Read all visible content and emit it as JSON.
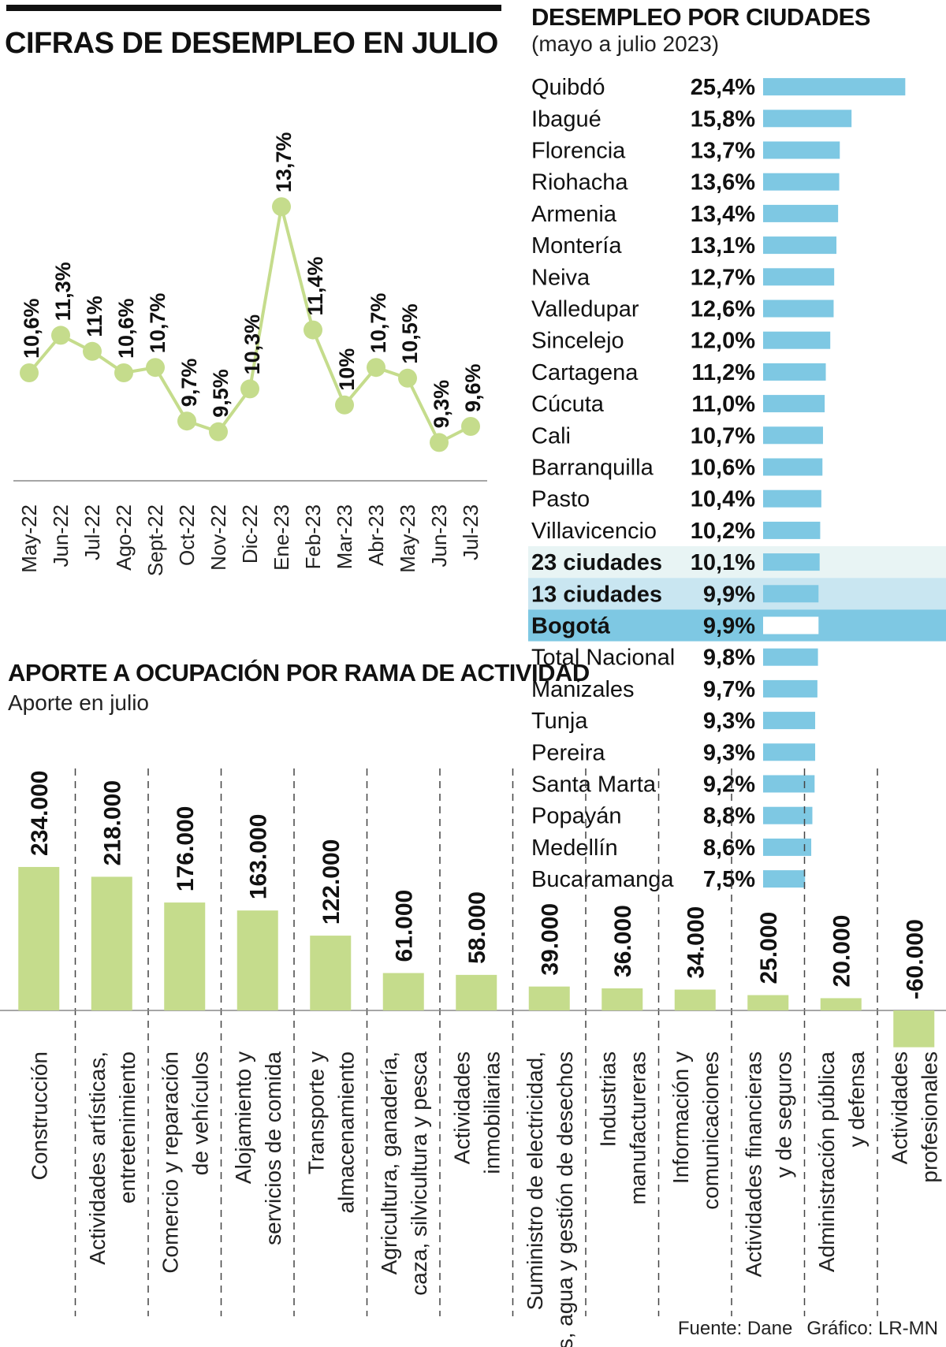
{
  "titles": {
    "main": "CIFRAS DE DESEMPLEO EN JULIO",
    "cities": "DESEMPLEO POR CIUDADES",
    "cities_sub": "(mayo a julio 2023)",
    "branch": "APORTE A OCUPACIÓN POR RAMA DE ACTIVIDAD",
    "branch_sub": "Aporte en julio"
  },
  "footer": {
    "source": "Fuente: Dane",
    "credit": "Gráfico: LR-MN"
  },
  "colors": {
    "line": "#c5dc8c",
    "bar": "#c5dc8c",
    "city_bar": "#7ec8e3",
    "hl_23": "#e8f4f4",
    "hl_13": "#c9e6f1",
    "hl_bogota": "#7ec8e3"
  },
  "chart_data": [
    {
      "type": "line",
      "title": "CIFRAS DE DESEMPLEO EN JULIO",
      "categories": [
        "May-22",
        "Jun-22",
        "Jul-22",
        "Ago-22",
        "Sept-22",
        "Oct-22",
        "Nov-22",
        "Dic-22",
        "Ene-23",
        "Feb-23",
        "Mar-23",
        "Abr-23",
        "May-23",
        "Jun-23",
        "Jul-23"
      ],
      "values": [
        10.6,
        11.3,
        11,
        10.6,
        10.7,
        9.7,
        9.5,
        10.3,
        13.7,
        11.4,
        10,
        10.7,
        10.5,
        9.3,
        9.6
      ],
      "labels": [
        "10,6%",
        "11,3%",
        "11%",
        "10,6%",
        "10,7%",
        "9,7%",
        "9,5%",
        "10,3%",
        "13,7%",
        "11,4%",
        "10%",
        "10,7%",
        "10,5%",
        "9,3%",
        "9,6%"
      ]
    },
    {
      "type": "bar",
      "orientation": "horizontal",
      "title": "DESEMPLEO POR CIUDADES",
      "subtitle": "(mayo a julio 2023)",
      "categories": [
        "Quibdó",
        "Ibagué",
        "Florencia",
        "Riohacha",
        "Armenia",
        "Montería",
        "Neiva",
        "Valledupar",
        "Sincelejo",
        "Cartagena",
        "Cúcuta",
        "Cali",
        "Barranquilla",
        "Pasto",
        "Villavicencio",
        "23 ciudades",
        "13 ciudades",
        "Bogotá",
        "Total Nacional",
        "Manizales",
        "Tunja",
        "Pereira",
        "Santa Marta",
        "Popayán",
        "Medellín",
        "Bucaramanga"
      ],
      "values": [
        25.4,
        15.8,
        13.7,
        13.6,
        13.4,
        13.1,
        12.7,
        12.6,
        12.0,
        11.2,
        11.0,
        10.7,
        10.6,
        10.4,
        10.2,
        10.1,
        9.9,
        9.9,
        9.8,
        9.7,
        9.3,
        9.3,
        9.2,
        8.8,
        8.6,
        7.5
      ],
      "labels": [
        "25,4%",
        "15,8%",
        "13,7%",
        "13,6%",
        "13,4%",
        "13,1%",
        "12,7%",
        "12,6%",
        "12,0%",
        "11,2%",
        "11,0%",
        "10,7%",
        "10,6%",
        "10,4%",
        "10,2%",
        "10,1%",
        "9,9%",
        "9,9%",
        "9,8%",
        "9,7%",
        "9,3%",
        "9,3%",
        "9,2%",
        "8,8%",
        "8,6%",
        "7,5%"
      ],
      "highlight": [
        "none",
        "none",
        "none",
        "none",
        "none",
        "none",
        "none",
        "none",
        "none",
        "none",
        "none",
        "none",
        "none",
        "none",
        "none",
        "hl_23",
        "hl_13",
        "hl_bogota",
        "none",
        "none",
        "none",
        "none",
        "none",
        "none",
        "none",
        "none"
      ]
    },
    {
      "type": "bar",
      "title": "APORTE A OCUPACIÓN POR RAMA DE ACTIVIDAD",
      "subtitle": "Aporte en julio",
      "categories": [
        [
          "Construcción"
        ],
        [
          "Actividades artísticas,",
          "entretenimiento"
        ],
        [
          "Comercio y reparación",
          "de vehículos"
        ],
        [
          "Alojamiento y",
          "servicios de comida"
        ],
        [
          "Transporte y",
          "almacenamiento"
        ],
        [
          "Agricultura, ganadería,",
          "caza, silvicultura y pesca"
        ],
        [
          "Actividades",
          "inmobiliarias"
        ],
        [
          "Suministro de electricidad,",
          "gas, agua y gestión de desechos"
        ],
        [
          "Industrias",
          "manufactureras"
        ],
        [
          "Información y",
          "comunicaciones"
        ],
        [
          "Actividades financieras",
          "y de seguros"
        ],
        [
          "Administración pública",
          "y defensa"
        ],
        [
          "Actividades",
          "profesionales"
        ]
      ],
      "values": [
        234000,
        218000,
        176000,
        163000,
        122000,
        61000,
        58000,
        39000,
        36000,
        34000,
        25000,
        20000,
        -60000
      ],
      "labels": [
        "234.000",
        "218.000",
        "176.000",
        "163.000",
        "122.000",
        "61.000",
        "58.000",
        "39.000",
        "36.000",
        "34.000",
        "25.000",
        "20.000",
        "-60.000"
      ]
    }
  ]
}
